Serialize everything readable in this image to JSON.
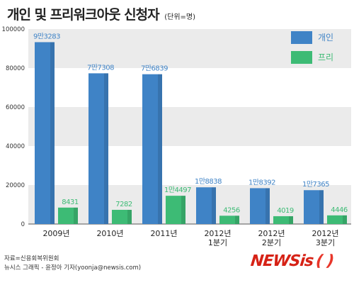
{
  "header": {
    "title": "개인 및 프리워크아웃 신청자",
    "unit": "(단위=명)"
  },
  "footer": {
    "line1": "자료=신용회복위원회",
    "line2": "뉴시스 그래픽 - 윤정아 기자(yoonja@newsis.com)"
  },
  "logo": {
    "main": "NEWSis",
    "paren": "( )"
  },
  "colors": {
    "series1": "#3f83c6",
    "series2": "#3dbb75",
    "band": "#ebebeb"
  },
  "chart_data": {
    "type": "bar",
    "title": "개인 및 프리워크아웃 신청자",
    "ylim": [
      0,
      100000
    ],
    "yticks": [
      0,
      20000,
      40000,
      60000,
      80000,
      100000
    ],
    "grid": "alternating-bands",
    "legend_position": "top-right",
    "categories": [
      [
        "2009년"
      ],
      [
        "2010년"
      ],
      [
        "2011년"
      ],
      [
        "2012년",
        "1분기"
      ],
      [
        "2012년",
        "2분기"
      ],
      [
        "2012년",
        "3분기"
      ]
    ],
    "series": [
      {
        "name": "개인",
        "values": [
          93283,
          77308,
          76839,
          18838,
          18392,
          17365
        ],
        "labels": [
          "9만3283",
          "7만7308",
          "7만6839",
          "1만8838",
          "1만8392",
          "1만7365"
        ]
      },
      {
        "name": "프리",
        "values": [
          8431,
          7282,
          14497,
          4256,
          4019,
          4446
        ],
        "labels": [
          "8431",
          "7282",
          "1만4497",
          "4256",
          "4019",
          "4446"
        ]
      }
    ]
  }
}
